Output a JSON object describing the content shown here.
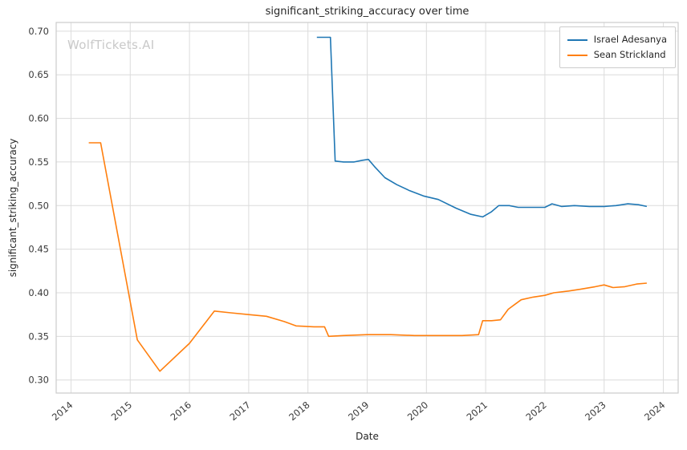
{
  "watermark": "WolfTickets.AI",
  "chart_data": {
    "type": "line",
    "title": "significant_striking_accuracy over time",
    "xlabel": "Date",
    "ylabel": "significant_striking_accuracy",
    "xlim": [
      2013.75,
      2024.25
    ],
    "ylim": [
      0.285,
      0.71
    ],
    "x_ticks": [
      2014,
      2015,
      2016,
      2017,
      2018,
      2019,
      2020,
      2021,
      2022,
      2023,
      2024
    ],
    "y_ticks": [
      0.3,
      0.35,
      0.4,
      0.45,
      0.5,
      0.55,
      0.6,
      0.65,
      0.7
    ],
    "grid": true,
    "legend_position": "upper right",
    "grid_color": "#dcdcdc",
    "border_color": "#cccccc",
    "series": [
      {
        "name": "Israel Adesanya",
        "color": "#1f77b4",
        "points": [
          [
            2018.15,
            0.693
          ],
          [
            2018.38,
            0.693
          ],
          [
            2018.46,
            0.551
          ],
          [
            2018.6,
            0.55
          ],
          [
            2018.78,
            0.55
          ],
          [
            2018.92,
            0.552
          ],
          [
            2019.02,
            0.553
          ],
          [
            2019.12,
            0.545
          ],
          [
            2019.3,
            0.532
          ],
          [
            2019.5,
            0.524
          ],
          [
            2019.72,
            0.517
          ],
          [
            2019.95,
            0.511
          ],
          [
            2020.2,
            0.507
          ],
          [
            2020.5,
            0.497
          ],
          [
            2020.75,
            0.49
          ],
          [
            2020.95,
            0.487
          ],
          [
            2021.1,
            0.493
          ],
          [
            2021.22,
            0.5
          ],
          [
            2021.4,
            0.5
          ],
          [
            2021.55,
            0.498
          ],
          [
            2021.8,
            0.498
          ],
          [
            2022.0,
            0.498
          ],
          [
            2022.12,
            0.502
          ],
          [
            2022.28,
            0.499
          ],
          [
            2022.5,
            0.5
          ],
          [
            2022.75,
            0.499
          ],
          [
            2023.0,
            0.499
          ],
          [
            2023.2,
            0.5
          ],
          [
            2023.4,
            0.502
          ],
          [
            2023.58,
            0.501
          ],
          [
            2023.72,
            0.499
          ]
        ]
      },
      {
        "name": "Sean Strickland",
        "color": "#ff7f0e",
        "points": [
          [
            2014.3,
            0.572
          ],
          [
            2014.5,
            0.572
          ],
          [
            2015.12,
            0.346
          ],
          [
            2015.5,
            0.31
          ],
          [
            2016.0,
            0.342
          ],
          [
            2016.42,
            0.379
          ],
          [
            2016.7,
            0.377
          ],
          [
            2017.0,
            0.375
          ],
          [
            2017.3,
            0.373
          ],
          [
            2017.6,
            0.367
          ],
          [
            2017.8,
            0.362
          ],
          [
            2018.1,
            0.361
          ],
          [
            2018.28,
            0.361
          ],
          [
            2018.35,
            0.35
          ],
          [
            2018.6,
            0.351
          ],
          [
            2019.0,
            0.352
          ],
          [
            2019.4,
            0.352
          ],
          [
            2019.8,
            0.351
          ],
          [
            2020.2,
            0.351
          ],
          [
            2020.6,
            0.351
          ],
          [
            2020.88,
            0.352
          ],
          [
            2020.95,
            0.368
          ],
          [
            2021.1,
            0.368
          ],
          [
            2021.25,
            0.369
          ],
          [
            2021.38,
            0.381
          ],
          [
            2021.48,
            0.386
          ],
          [
            2021.6,
            0.392
          ],
          [
            2021.8,
            0.395
          ],
          [
            2022.0,
            0.397
          ],
          [
            2022.15,
            0.4
          ],
          [
            2022.4,
            0.402
          ],
          [
            2022.6,
            0.404
          ],
          [
            2022.85,
            0.407
          ],
          [
            2023.0,
            0.409
          ],
          [
            2023.15,
            0.406
          ],
          [
            2023.35,
            0.407
          ],
          [
            2023.55,
            0.41
          ],
          [
            2023.72,
            0.411
          ]
        ]
      }
    ]
  }
}
